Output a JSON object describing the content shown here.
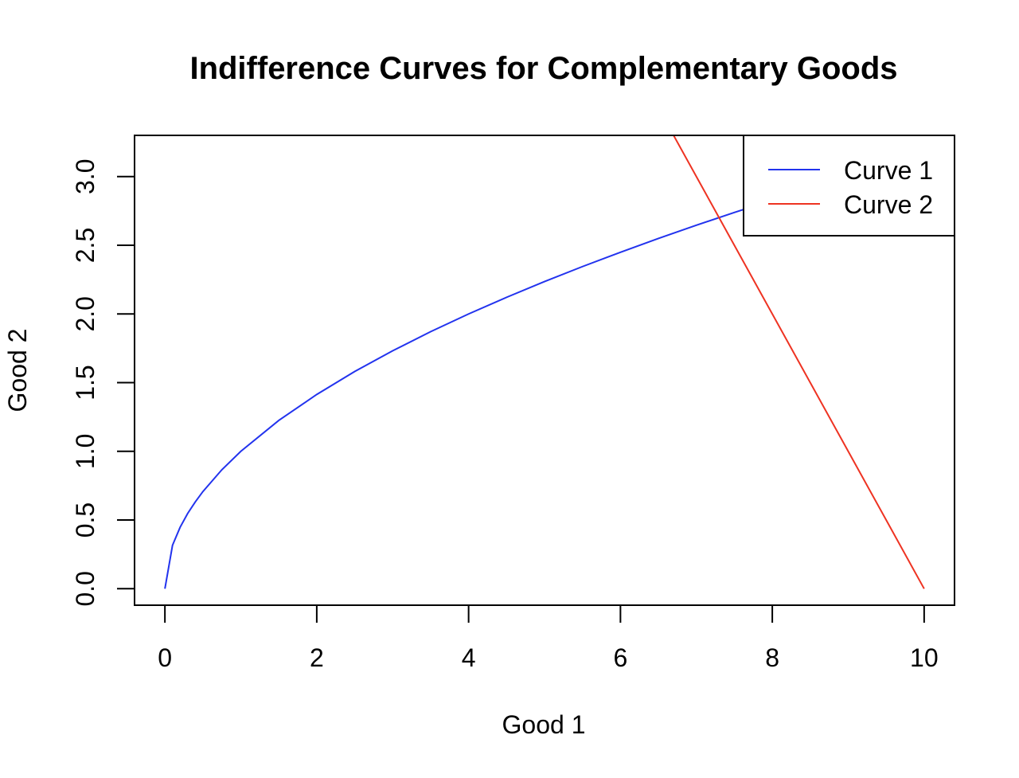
{
  "chart_data": {
    "type": "line",
    "title": "Indifference Curves for Complementary Goods",
    "xlabel": "Good 1",
    "ylabel": "Good 2",
    "xlim": [
      -0.4,
      10.4
    ],
    "ylim": [
      -0.12,
      3.3
    ],
    "x_ticks": [
      0,
      2,
      4,
      6,
      8,
      10
    ],
    "x_tick_labels": [
      "0",
      "2",
      "4",
      "6",
      "8",
      "10"
    ],
    "y_ticks": [
      0.0,
      0.5,
      1.0,
      1.5,
      2.0,
      2.5,
      3.0
    ],
    "y_tick_labels": [
      "0.0",
      "0.5",
      "1.0",
      "1.5",
      "2.0",
      "2.5",
      "3.0"
    ],
    "grid": false,
    "legend_position": "top-right",
    "series": [
      {
        "name": "Curve 1",
        "color": "#2233ee",
        "x": [
          0,
          0.1,
          0.2,
          0.3,
          0.4,
          0.5,
          0.75,
          1,
          1.5,
          2,
          2.5,
          3,
          3.5,
          4,
          4.5,
          5,
          5.5,
          6,
          6.5,
          7,
          7.5,
          8
        ],
        "y": [
          0,
          0.316,
          0.447,
          0.548,
          0.632,
          0.707,
          0.866,
          1.0,
          1.225,
          1.414,
          1.581,
          1.732,
          1.871,
          2.0,
          2.121,
          2.236,
          2.345,
          2.449,
          2.55,
          2.646,
          2.739,
          2.828
        ]
      },
      {
        "name": "Curve 2",
        "color": "#ee3322",
        "x": [
          6.5,
          7,
          7.5,
          8,
          8.5,
          9,
          9.5,
          10
        ],
        "y": [
          3.5,
          3.0,
          2.5,
          2.0,
          1.5,
          1.0,
          0.5,
          0.0
        ]
      }
    ]
  }
}
